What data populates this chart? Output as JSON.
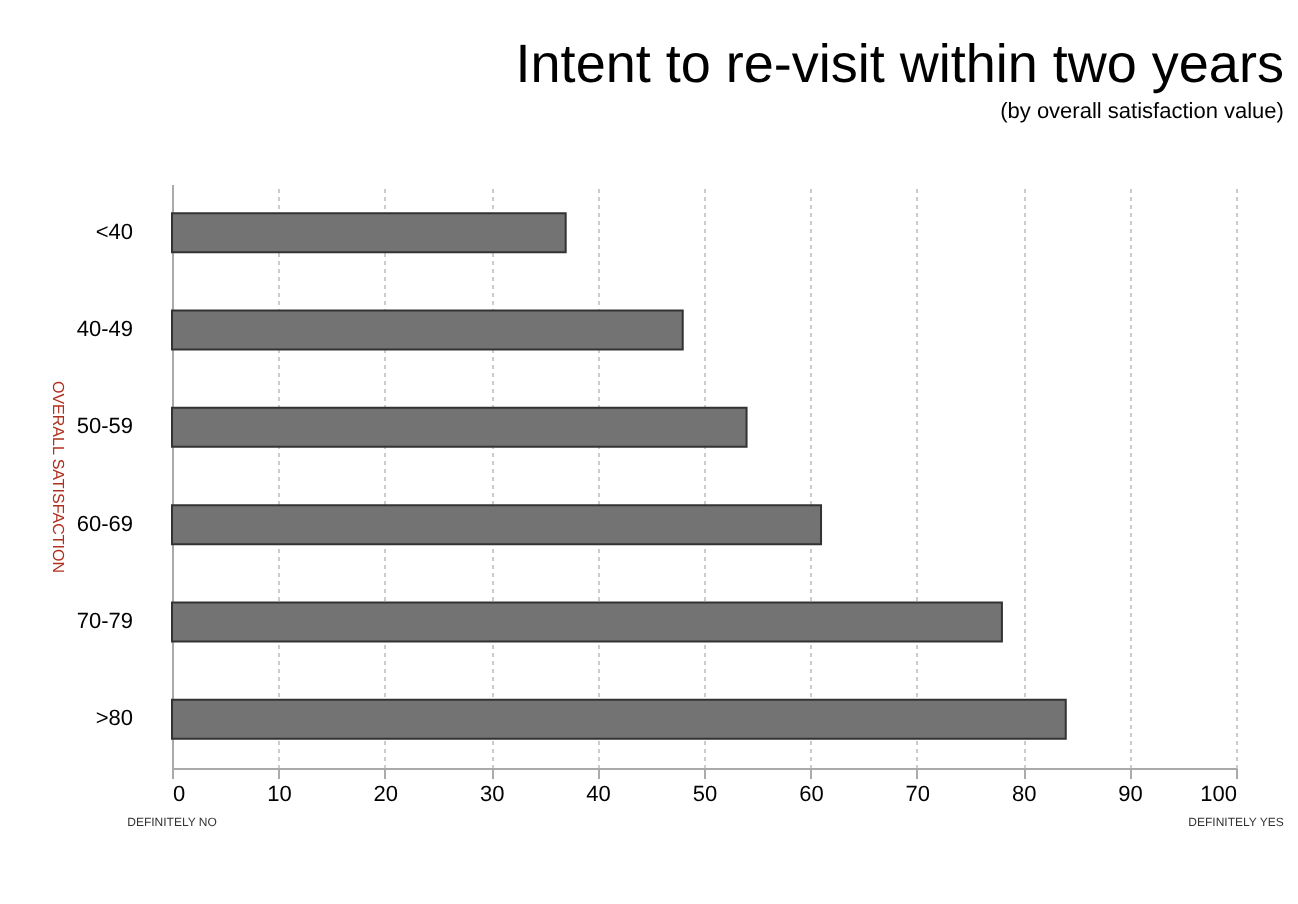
{
  "chart_data": {
    "type": "bar",
    "orientation": "horizontal",
    "title": "Intent to re-visit within two years",
    "subtitle": "(by overall satisfaction value)",
    "ylabel": "OVERALL SATISFACTION",
    "categories": [
      "<40",
      "40-49",
      "50-59",
      "60-69",
      "70-79",
      ">80"
    ],
    "values": [
      37,
      48,
      54,
      61,
      78,
      84
    ],
    "color": "#737373",
    "xlim": [
      0,
      100
    ],
    "xticks": [
      0,
      10,
      20,
      30,
      40,
      50,
      60,
      70,
      80,
      90,
      100
    ],
    "grid": "x",
    "annotations": [
      "DEFINITELY NO",
      "DEFINITELY YES"
    ]
  }
}
